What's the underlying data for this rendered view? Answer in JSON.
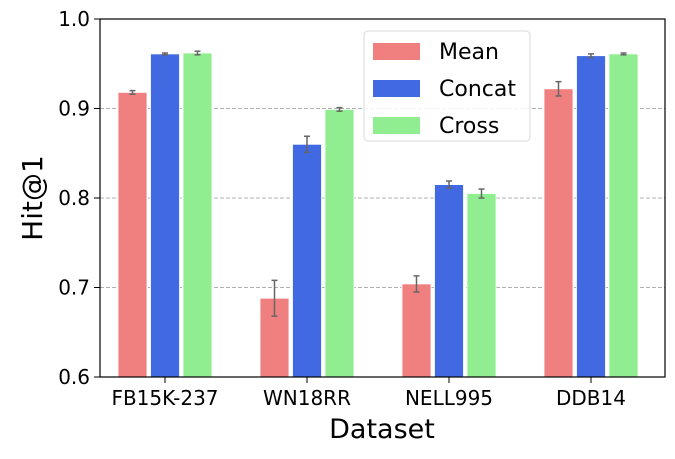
{
  "chart_data": {
    "type": "bar",
    "title": "",
    "xlabel": "Dataset",
    "ylabel": "Hit@1",
    "ylim": [
      0.6,
      1.0
    ],
    "yticks": [
      "0.6",
      "0.7",
      "0.8",
      "0.9",
      "1.0"
    ],
    "grid": "horizontal dashed",
    "legend_placement": "upper-center",
    "categories": [
      "FB15K-237",
      "WN18RR",
      "NELL995",
      "DDB14"
    ],
    "series": [
      {
        "name": "Mean",
        "color": "#F08080",
        "values": [
          0.918,
          0.688,
          0.704,
          0.922
        ],
        "errors": [
          0.002,
          0.02,
          0.009,
          0.008
        ]
      },
      {
        "name": "Concat",
        "color": "#4169E1",
        "values": [
          0.961,
          0.86,
          0.815,
          0.959
        ],
        "errors": [
          0.001,
          0.009,
          0.004,
          0.002
        ]
      },
      {
        "name": "Cross",
        "color": "#90EE90",
        "values": [
          0.962,
          0.899,
          0.805,
          0.961
        ],
        "errors": [
          0.002,
          0.002,
          0.005,
          0.001
        ]
      }
    ]
  }
}
